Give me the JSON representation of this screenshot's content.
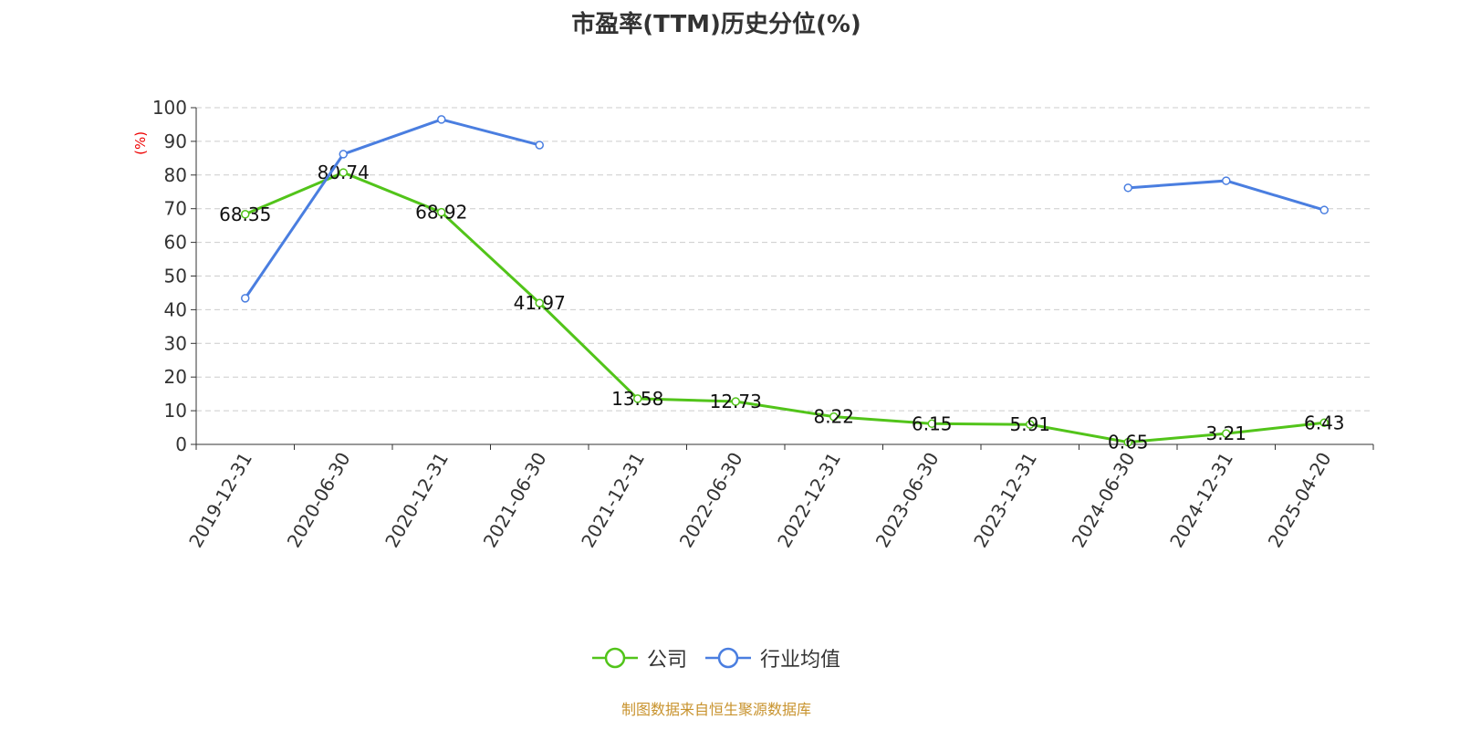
{
  "chart_data": {
    "type": "line",
    "title": "市盈率(TTM)历史分位(%)",
    "ylabel": "(%)",
    "ylim": [
      0,
      100
    ],
    "yticks": [
      0,
      10,
      20,
      30,
      40,
      50,
      60,
      70,
      80,
      90,
      100
    ],
    "grid": true,
    "legend_position": "bottom",
    "categories": [
      "2019-12-31",
      "2020-06-30",
      "2020-12-31",
      "2021-06-30",
      "2021-12-31",
      "2022-06-30",
      "2022-12-31",
      "2023-06-30",
      "2023-12-31",
      "2024-06-30",
      "2024-12-31",
      "2025-04-20"
    ],
    "series": [
      {
        "name": "公司",
        "color": "#52c41a",
        "show_labels": true,
        "values": [
          68.35,
          80.74,
          68.92,
          41.97,
          13.58,
          12.73,
          8.22,
          6.15,
          5.91,
          0.65,
          3.21,
          6.43
        ]
      },
      {
        "name": "行业均值",
        "color": "#4a7ee0",
        "show_labels": false,
        "values": [
          43.4,
          86.2,
          96.5,
          88.9,
          null,
          null,
          null,
          null,
          null,
          76.2,
          78.3,
          69.6
        ]
      }
    ]
  },
  "source": "制图数据来自恒生聚源数据库"
}
